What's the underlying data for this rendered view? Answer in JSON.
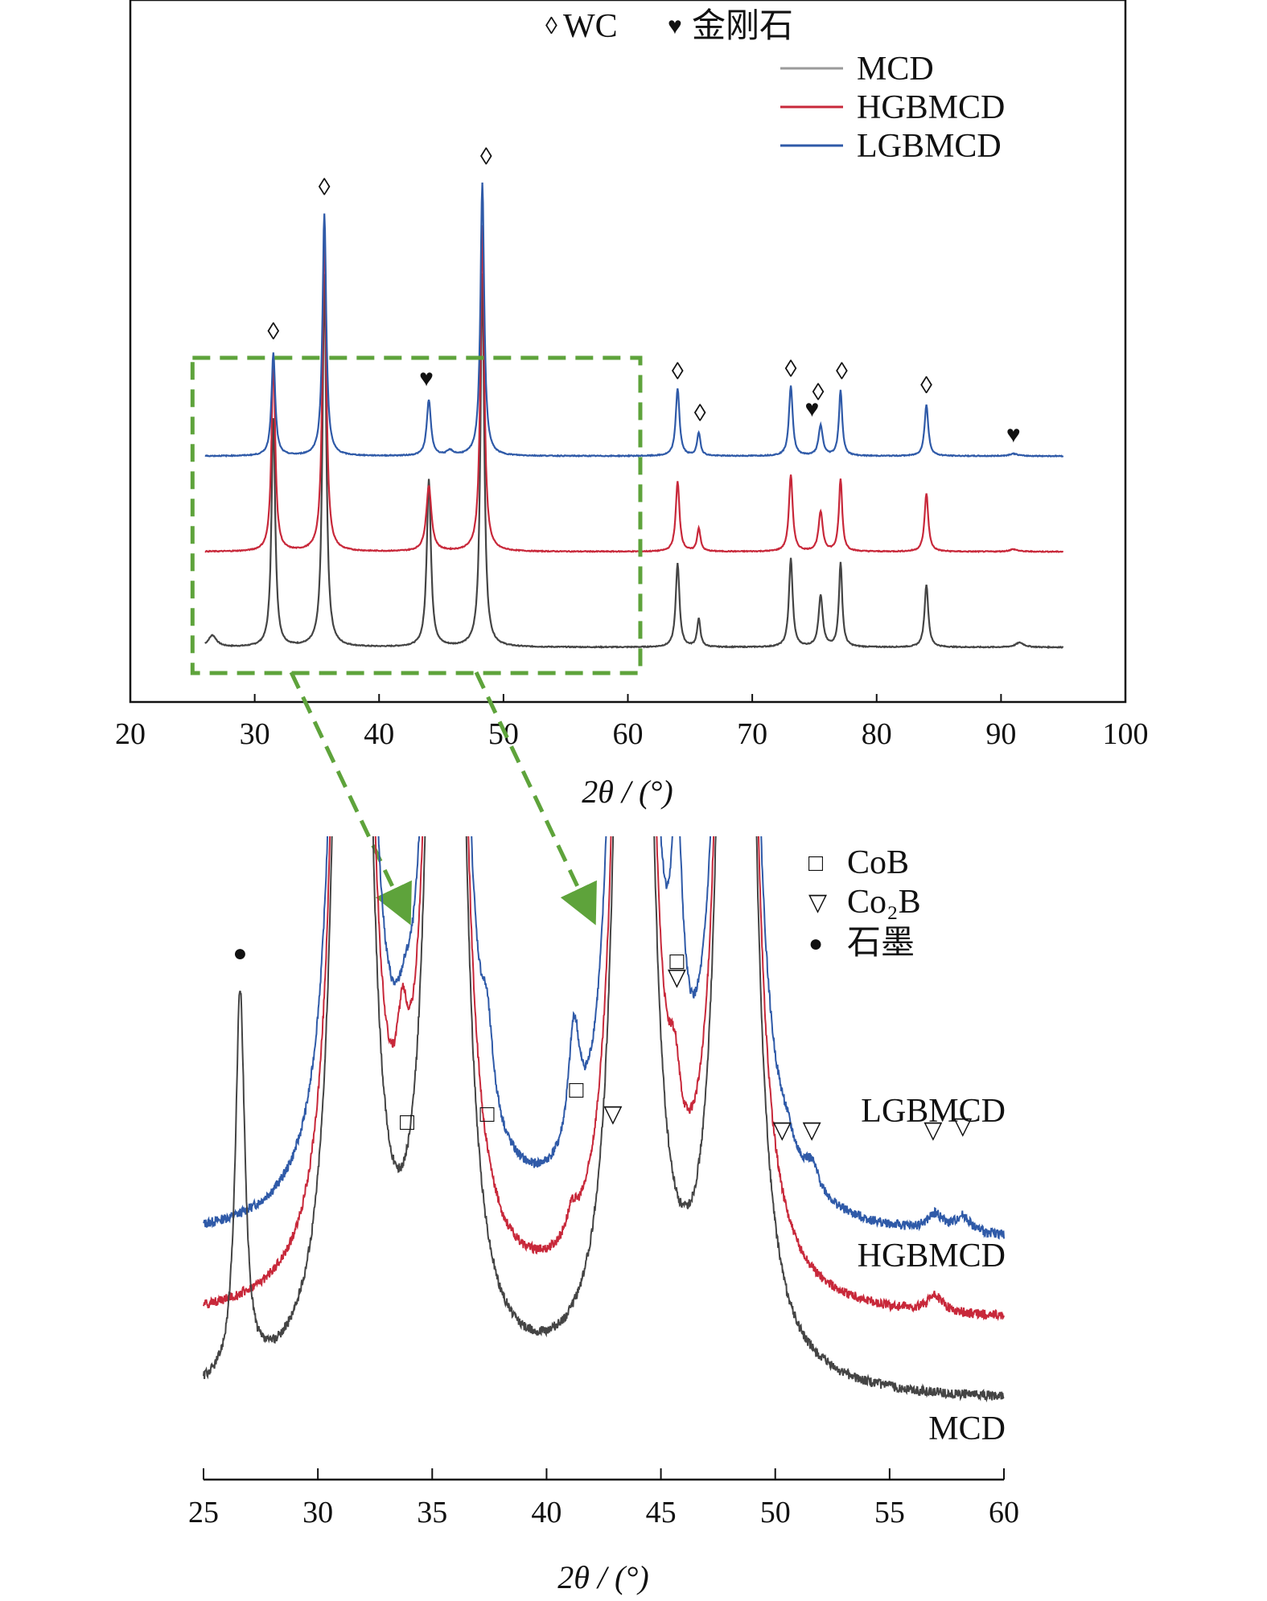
{
  "chart_data": [
    {
      "type": "line",
      "xlabel": "2θ / (°)",
      "xlim": [
        20,
        100
      ],
      "xticks": [
        20,
        30,
        40,
        50,
        60,
        70,
        80,
        90,
        100
      ],
      "yaxis_visible": false,
      "grid": false,
      "legend": {
        "placement": "top-right",
        "markers": [
          {
            "symbol": "◊",
            "label": "WC"
          },
          {
            "symbol": "♥",
            "label": "金刚石"
          }
        ],
        "series": [
          "MCD",
          "HGBMCD",
          "LGBMCD"
        ]
      },
      "series": [
        {
          "name": "MCD",
          "color": "#444444",
          "baseline": 0,
          "peaks": [
            {
              "x": 26.6,
              "h": 0.05,
              "w": 0.4
            },
            {
              "x": 31.5,
              "h": 0.98,
              "w": 0.18
            },
            {
              "x": 35.6,
              "h": 1.6,
              "w": 0.18
            },
            {
              "x": 44.0,
              "h": 0.72,
              "w": 0.2
            },
            {
              "x": 48.3,
              "h": 1.6,
              "w": 0.18
            },
            {
              "x": 64.0,
              "h": 0.36,
              "w": 0.18
            },
            {
              "x": 65.7,
              "h": 0.12,
              "w": 0.16
            },
            {
              "x": 73.1,
              "h": 0.38,
              "w": 0.18
            },
            {
              "x": 75.5,
              "h": 0.22,
              "w": 0.2
            },
            {
              "x": 77.1,
              "h": 0.36,
              "w": 0.16
            },
            {
              "x": 84.0,
              "h": 0.27,
              "w": 0.18
            },
            {
              "x": 91.5,
              "h": 0.02,
              "w": 0.4
            }
          ]
        },
        {
          "name": "HGBMCD",
          "color": "#c8283a",
          "baseline": 0.41,
          "peaks": [
            {
              "x": 31.5,
              "h": 0.83,
              "w": 0.18
            },
            {
              "x": 35.6,
              "h": 1.4,
              "w": 0.18
            },
            {
              "x": 44.0,
              "h": 0.28,
              "w": 0.25
            },
            {
              "x": 48.3,
              "h": 1.4,
              "w": 0.18
            },
            {
              "x": 64.0,
              "h": 0.3,
              "w": 0.18
            },
            {
              "x": 65.7,
              "h": 0.1,
              "w": 0.16
            },
            {
              "x": 73.1,
              "h": 0.33,
              "w": 0.18
            },
            {
              "x": 75.5,
              "h": 0.17,
              "w": 0.2
            },
            {
              "x": 77.1,
              "h": 0.31,
              "w": 0.16
            },
            {
              "x": 84.0,
              "h": 0.25,
              "w": 0.18
            },
            {
              "x": 91.0,
              "h": 0.01,
              "w": 0.4
            }
          ]
        },
        {
          "name": "LGBMCD",
          "color": "#2f5aa8",
          "baseline": 0.82,
          "peaks": [
            {
              "x": 31.5,
              "h": 0.44,
              "w": 0.18
            },
            {
              "x": 35.6,
              "h": 1.04,
              "w": 0.18
            },
            {
              "x": 44.0,
              "h": 0.24,
              "w": 0.2
            },
            {
              "x": 45.7,
              "h": 0.02,
              "w": 0.3
            },
            {
              "x": 48.3,
              "h": 1.17,
              "w": 0.18
            },
            {
              "x": 64.0,
              "h": 0.29,
              "w": 0.18
            },
            {
              "x": 65.7,
              "h": 0.1,
              "w": 0.16
            },
            {
              "x": 73.1,
              "h": 0.3,
              "w": 0.18
            },
            {
              "x": 75.5,
              "h": 0.13,
              "w": 0.2
            },
            {
              "x": 77.1,
              "h": 0.28,
              "w": 0.16
            },
            {
              "x": 84.0,
              "h": 0.22,
              "w": 0.18
            },
            {
              "x": 91.0,
              "h": 0.01,
              "w": 0.4
            }
          ]
        }
      ],
      "annotations": [
        {
          "x": 31.5,
          "symbol": "◊",
          "y": 1.32
        },
        {
          "x": 35.6,
          "symbol": "◊",
          "y": 1.94
        },
        {
          "x": 43.8,
          "symbol": "♥",
          "y": 1.12
        },
        {
          "x": 48.6,
          "symbol": "◊",
          "y": 2.07
        },
        {
          "x": 64.0,
          "symbol": "◊",
          "y": 1.15
        },
        {
          "x": 65.8,
          "symbol": "◊",
          "y": 0.97
        },
        {
          "x": 73.1,
          "symbol": "◊",
          "y": 1.16
        },
        {
          "x": 74.8,
          "symbol": "♥",
          "y": 0.99
        },
        {
          "x": 75.3,
          "symbol": "◊",
          "y": 1.06
        },
        {
          "x": 77.2,
          "symbol": "◊",
          "y": 1.15
        },
        {
          "x": 84.0,
          "symbol": "◊",
          "y": 1.09
        },
        {
          "x": 91.0,
          "symbol": "♥",
          "y": 0.88
        }
      ],
      "zoom_box": {
        "x": [
          25,
          61
        ],
        "color": "#5ea33b"
      }
    },
    {
      "type": "line",
      "xlabel": "2θ / (°)",
      "xlim": [
        25,
        60
      ],
      "xticks": [
        25,
        30,
        35,
        40,
        45,
        50,
        55,
        60
      ],
      "yaxis_visible": false,
      "grid": false,
      "legend": {
        "placement": "top-right",
        "markers": [
          {
            "symbol": "□",
            "label": "CoB"
          },
          {
            "symbol": "▽",
            "label": "Co₂B"
          },
          {
            "symbol": "●",
            "label": "石墨"
          }
        ]
      },
      "series": [
        {
          "name": "LGBMCD",
          "color": "#2f5aa8",
          "baseline": 0.2,
          "peaks": [
            {
              "x": 31.5,
              "h": 5.0,
              "w": 0.35
            },
            {
              "x": 33.8,
              "h": 0.05,
              "w": 0.4
            },
            {
              "x": 35.6,
              "h": 5.0,
              "w": 0.35
            },
            {
              "x": 37.4,
              "h": 0.09,
              "w": 0.3
            },
            {
              "x": 41.2,
              "h": 0.15,
              "w": 0.3
            },
            {
              "x": 42.8,
              "h": 0.1,
              "w": 0.3
            },
            {
              "x": 43.8,
              "h": 5.0,
              "w": 0.35
            },
            {
              "x": 45.7,
              "h": 0.3,
              "w": 0.3
            },
            {
              "x": 48.3,
              "h": 5.0,
              "w": 0.35
            },
            {
              "x": 50.5,
              "h": 0.02,
              "w": 0.4
            },
            {
              "x": 51.6,
              "h": 0.03,
              "w": 0.4
            },
            {
              "x": 57.0,
              "h": 0.02,
              "w": 0.4
            },
            {
              "x": 58.2,
              "h": 0.02,
              "w": 0.4
            }
          ]
        },
        {
          "name": "HGBMCD",
          "color": "#c8283a",
          "baseline": 0.1,
          "peaks": [
            {
              "x": 31.5,
              "h": 5.0,
              "w": 0.35
            },
            {
              "x": 33.7,
              "h": 0.12,
              "w": 0.3
            },
            {
              "x": 35.6,
              "h": 5.0,
              "w": 0.35
            },
            {
              "x": 41.1,
              "h": 0.03,
              "w": 0.3
            },
            {
              "x": 43.8,
              "h": 5.0,
              "w": 0.35
            },
            {
              "x": 45.6,
              "h": 0.09,
              "w": 0.3
            },
            {
              "x": 48.3,
              "h": 5.0,
              "w": 0.35
            },
            {
              "x": 57.0,
              "h": 0.02,
              "w": 0.4
            }
          ]
        },
        {
          "name": "MCD",
          "color": "#444444",
          "baseline": 0.0,
          "peaks": [
            {
              "x": 26.6,
              "h": 0.48,
              "w": 0.25
            },
            {
              "x": 31.5,
              "h": 5.0,
              "w": 0.35
            },
            {
              "x": 35.6,
              "h": 5.0,
              "w": 0.35
            },
            {
              "x": 43.8,
              "h": 5.0,
              "w": 0.35
            },
            {
              "x": 48.3,
              "h": 5.0,
              "w": 0.35
            }
          ]
        }
      ],
      "series_labels": [
        "LGBMCD",
        "HGBMCD",
        "MCD"
      ],
      "annotations": [
        {
          "x": 26.6,
          "symbol": "●",
          "y": 0.55
        },
        {
          "x": 33.9,
          "symbol": "□",
          "y": 0.34
        },
        {
          "x": 37.4,
          "symbol": "□",
          "y": 0.35
        },
        {
          "x": 41.3,
          "symbol": "□",
          "y": 0.38
        },
        {
          "x": 42.9,
          "symbol": "▽",
          "y": 0.35
        },
        {
          "x": 45.7,
          "symbol": "□",
          "y": 0.54
        },
        {
          "x": 45.7,
          "symbol": "▽",
          "y": 0.52
        },
        {
          "x": 50.3,
          "symbol": "▽",
          "y": 0.33
        },
        {
          "x": 51.6,
          "symbol": "▽",
          "y": 0.33
        },
        {
          "x": 56.9,
          "symbol": "▽",
          "y": 0.33
        },
        {
          "x": 58.2,
          "symbol": "▽",
          "y": 0.335
        }
      ]
    }
  ]
}
